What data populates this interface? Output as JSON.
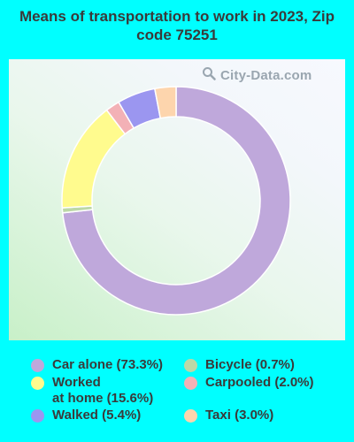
{
  "chart_data": {
    "type": "pie",
    "title": "Means of transportation to work in 2023, Zip code 75251",
    "slices": [
      {
        "label": "Car alone (73.3%)",
        "value": 73.3,
        "color": "#bfa8db"
      },
      {
        "label": "Bicycle (0.7%)",
        "value": 0.7,
        "color": "#bcd8a7"
      },
      {
        "label": "Worked at home (15.6%)",
        "value": 15.6,
        "color": "#fffb8e"
      },
      {
        "label": "Carpooled (2.0%)",
        "value": 2.0,
        "color": "#f3b1b6"
      },
      {
        "label": "Walked (5.4%)",
        "value": 5.4,
        "color": "#9b96f0"
      },
      {
        "label": "Taxi (3.0%)",
        "value": 3.0,
        "color": "#fdd5ad"
      }
    ],
    "legend_placement": "bottom"
  },
  "watermark": {
    "text": "City-Data.com",
    "icon": "search-icon"
  },
  "legend": {
    "car_alone": "Car alone (73.3%)",
    "worked_home_line1": "Worked",
    "worked_home_line2": "at home (15.6%)",
    "walked": "Walked (5.4%)",
    "bicycle": "Bicycle (0.7%)",
    "carpooled": "Carpooled (2.0%)",
    "taxi": "Taxi (3.0%)"
  },
  "colors": {
    "background": "#00ffff",
    "car_alone": "#bfa8db",
    "bicycle": "#bcd8a7",
    "worked_home": "#fffb8e",
    "carpooled": "#f3b1b6",
    "walked": "#9b96f0",
    "taxi": "#fdd5ad"
  }
}
